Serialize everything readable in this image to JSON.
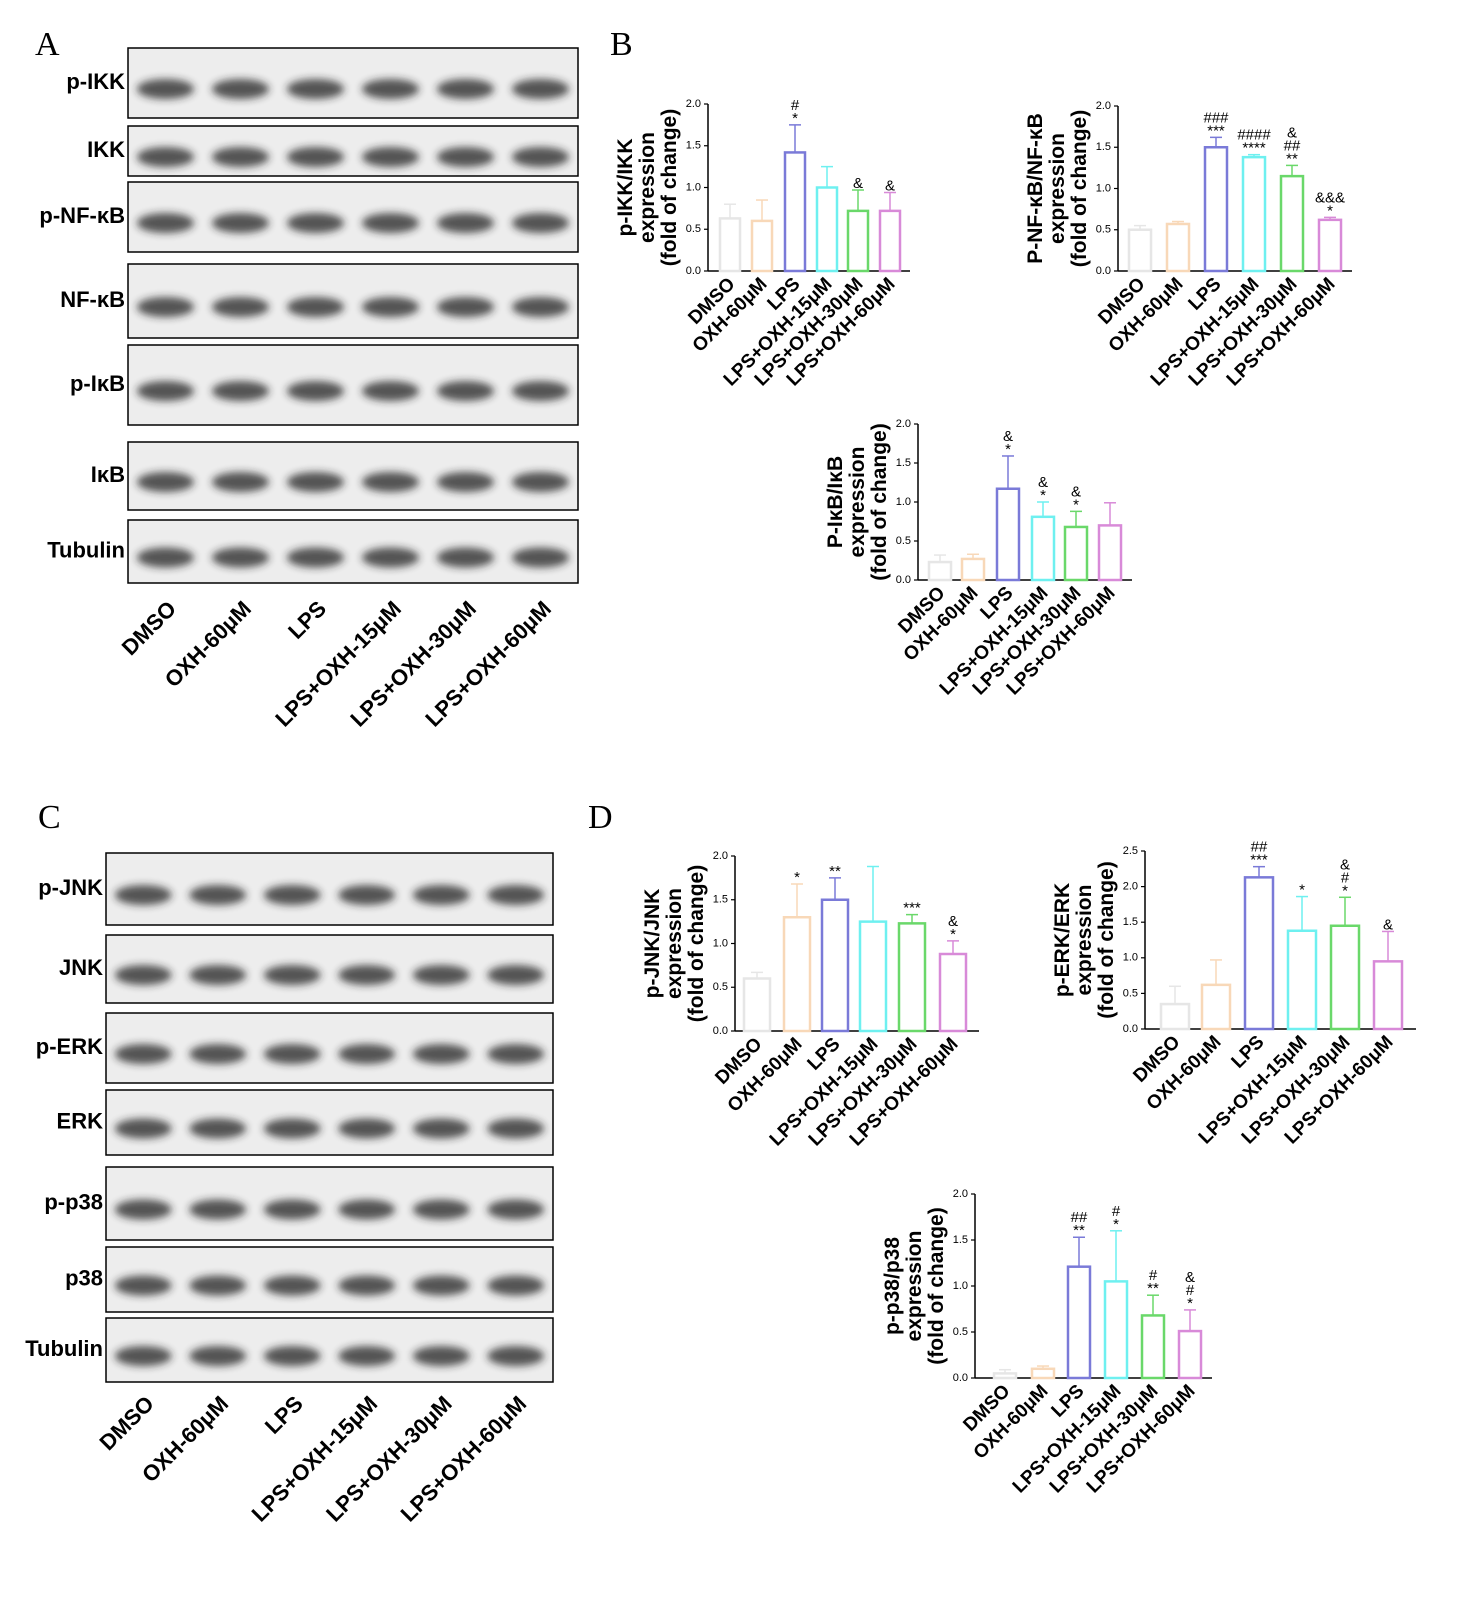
{
  "panels": [
    {
      "letter": "A",
      "bands": [
        "p-IKK",
        "IKK",
        "p-NF-κB",
        "NF-κB",
        "p-IκB",
        "IκB",
        "Tubulin"
      ],
      "lanes": [
        "DMSO",
        "OXH-60μM",
        "LPS",
        "LPS+OXH-15μM",
        "LPS+OXH-30μM",
        "LPS+OXH-60μM"
      ]
    },
    {
      "letter": "B"
    },
    {
      "letter": "C",
      "bands": [
        "p-JNK",
        "JNK",
        "p-ERK",
        "ERK",
        "p-p38",
        "p38",
        "Tubulin"
      ],
      "lanes": [
        "DMSO",
        "OXH-60μM",
        "LPS",
        "LPS+OXH-15μM",
        "LPS+OXH-30μM",
        "LPS+OXH-60μM"
      ]
    },
    {
      "letter": "D"
    }
  ],
  "chart_data": [
    {
      "type": "bar",
      "ylabel": [
        "p-IKK/IKK",
        "expression",
        "(fold of change)"
      ],
      "categories": [
        "DMSO",
        "OXH-60μM",
        "LPS",
        "LPS+OXH-15μM",
        "LPS+OXH-30μM",
        "LPS+OXH-60μM"
      ],
      "colors": [
        "#e6e6e6",
        "#f8d8b8",
        "#7a7ad8",
        "#6ef0f0",
        "#6ad86a",
        "#d88ad8"
      ],
      "values": [
        0.63,
        0.6,
        1.42,
        1.0,
        0.72,
        0.72
      ],
      "errors": [
        0.17,
        0.25,
        0.33,
        0.25,
        0.25,
        0.22
      ],
      "annotations": [
        [],
        [],
        [
          "#",
          "*"
        ],
        [],
        [
          "&"
        ],
        [
          "&"
        ]
      ],
      "ylim": [
        0,
        2
      ],
      "yticks": [
        {
          "value": 0,
          "label": "0.0"
        },
        {
          "value": 0.5,
          "label": "0.5"
        },
        {
          "value": 1,
          "label": "1.0"
        },
        {
          "value": 1.5,
          "label": "1.5"
        },
        {
          "value": 2,
          "label": "2.0"
        }
      ]
    },
    {
      "type": "bar",
      "ylabel": [
        "P-NF-κB/NF-κB",
        "expression",
        "(fold of change)"
      ],
      "categories": [
        "DMSO",
        "OXH-60μM",
        "LPS",
        "LPS+OXH-15μM",
        "LPS+OXH-30μM",
        "LPS+OXH-60μM"
      ],
      "colors": [
        "#e6e6e6",
        "#f8d8b8",
        "#7a7ad8",
        "#6ef0f0",
        "#6ad86a",
        "#d88ad8"
      ],
      "values": [
        0.5,
        0.57,
        1.5,
        1.38,
        1.15,
        0.62
      ],
      "errors": [
        0.05,
        0.03,
        0.12,
        0.03,
        0.13,
        0.03
      ],
      "annotations": [
        [],
        [],
        [
          "###",
          "***"
        ],
        [
          "####",
          "****"
        ],
        [
          "&",
          "##",
          "**"
        ],
        [
          "&&&",
          "*"
        ]
      ],
      "ylim": [
        0,
        2
      ],
      "yticks": [
        {
          "value": 0,
          "label": "0.0"
        },
        {
          "value": 0.5,
          "label": "0.5"
        },
        {
          "value": 1,
          "label": "1.0"
        },
        {
          "value": 1.5,
          "label": "1.5"
        },
        {
          "value": 2,
          "label": "2.0"
        }
      ]
    },
    {
      "type": "bar",
      "ylabel": [
        "P-IκB/IκB",
        "expression",
        "(fold of change)"
      ],
      "categories": [
        "DMSO",
        "OXH-60μM",
        "LPS",
        "LPS+OXH-15μM",
        "LPS+OXH-30μM",
        "LPS+OXH-60μM"
      ],
      "colors": [
        "#e6e6e6",
        "#f8d8b8",
        "#7a7ad8",
        "#6ef0f0",
        "#6ad86a",
        "#d88ad8"
      ],
      "values": [
        0.23,
        0.27,
        1.17,
        0.81,
        0.68,
        0.7
      ],
      "errors": [
        0.09,
        0.06,
        0.42,
        0.19,
        0.2,
        0.29
      ],
      "annotations": [
        [],
        [],
        [
          "&",
          "*"
        ],
        [
          "&",
          "*"
        ],
        [
          "&",
          "*"
        ],
        []
      ],
      "ylim": [
        0,
        2
      ],
      "yticks": [
        {
          "value": 0,
          "label": "0.0"
        },
        {
          "value": 0.5,
          "label": "0.5"
        },
        {
          "value": 1,
          "label": "1.0"
        },
        {
          "value": 1.5,
          "label": "1.5"
        },
        {
          "value": 2,
          "label": "2.0"
        }
      ]
    },
    {
      "type": "bar",
      "ylabel": [
        "p-JNK/JNK",
        "expression",
        "(fold of change)"
      ],
      "categories": [
        "DMSO",
        "OXH-60μM",
        "LPS",
        "LPS+OXH-15μM",
        "LPS+OXH-30μM",
        "LPS+OXH-60μM"
      ],
      "colors": [
        "#e6e6e6",
        "#f8d8b8",
        "#7a7ad8",
        "#6ef0f0",
        "#6ad86a",
        "#d88ad8"
      ],
      "values": [
        0.6,
        1.3,
        1.5,
        1.25,
        1.23,
        0.88
      ],
      "errors": [
        0.07,
        0.38,
        0.25,
        0.63,
        0.1,
        0.15
      ],
      "annotations": [
        [],
        [
          "*"
        ],
        [
          "**"
        ],
        [],
        [
          "***"
        ],
        [
          "&",
          "*"
        ]
      ],
      "ylim": [
        0,
        2
      ],
      "yticks": [
        {
          "value": 0,
          "label": "0.0"
        },
        {
          "value": 0.5,
          "label": "0.5"
        },
        {
          "value": 1,
          "label": "1.0"
        },
        {
          "value": 1.5,
          "label": "1.5"
        },
        {
          "value": 2,
          "label": "2.0"
        }
      ]
    },
    {
      "type": "bar",
      "ylabel": [
        "p-ERK/ERK",
        "expression",
        "(fold of change)"
      ],
      "categories": [
        "DMSO",
        "OXH-60μM",
        "LPS",
        "LPS+OXH-15μM",
        "LPS+OXH-30μM",
        "LPS+OXH-60μM"
      ],
      "colors": [
        "#e6e6e6",
        "#f8d8b8",
        "#7a7ad8",
        "#6ef0f0",
        "#6ad86a",
        "#d88ad8"
      ],
      "values": [
        0.35,
        0.62,
        2.13,
        1.38,
        1.45,
        0.95
      ],
      "errors": [
        0.25,
        0.35,
        0.15,
        0.48,
        0.4,
        0.42
      ],
      "annotations": [
        [],
        [],
        [
          "##",
          "***"
        ],
        [
          "*"
        ],
        [
          "&",
          "#",
          "*"
        ],
        [
          "&"
        ]
      ],
      "ylim": [
        0,
        2.5
      ],
      "yticks": [
        {
          "value": 0,
          "label": "0.0"
        },
        {
          "value": 0.5,
          "label": "0.5"
        },
        {
          "value": 1,
          "label": "1.0"
        },
        {
          "value": 1.5,
          "label": "1.5"
        },
        {
          "value": 2,
          "label": "2.0"
        },
        {
          "value": 2.5,
          "label": "2.5"
        }
      ]
    },
    {
      "type": "bar",
      "ylabel": [
        "p-p38/p38",
        "expression",
        "(fold of change)"
      ],
      "categories": [
        "DMSO",
        "OXH-60μM",
        "LPS",
        "LPS+OXH-15μM",
        "LPS+OXH-30μM",
        "LPS+OXH-60μM"
      ],
      "colors": [
        "#e6e6e6",
        "#f8d8b8",
        "#7a7ad8",
        "#6ef0f0",
        "#6ad86a",
        "#d88ad8"
      ],
      "values": [
        0.05,
        0.1,
        1.21,
        1.05,
        0.68,
        0.51
      ],
      "errors": [
        0.04,
        0.03,
        0.32,
        0.55,
        0.22,
        0.23
      ],
      "annotations": [
        [],
        [],
        [
          "##",
          "**"
        ],
        [
          "#",
          "*"
        ],
        [
          "#",
          "**"
        ],
        [
          "&",
          "#",
          "*"
        ]
      ],
      "ylim": [
        0,
        2
      ],
      "yticks": [
        {
          "value": 0,
          "label": "0.0"
        },
        {
          "value": 0.5,
          "label": "0.5"
        },
        {
          "value": 1,
          "label": "1.0"
        },
        {
          "value": 1.5,
          "label": "1.5"
        },
        {
          "value": 2,
          "label": "2.0"
        }
      ]
    }
  ]
}
